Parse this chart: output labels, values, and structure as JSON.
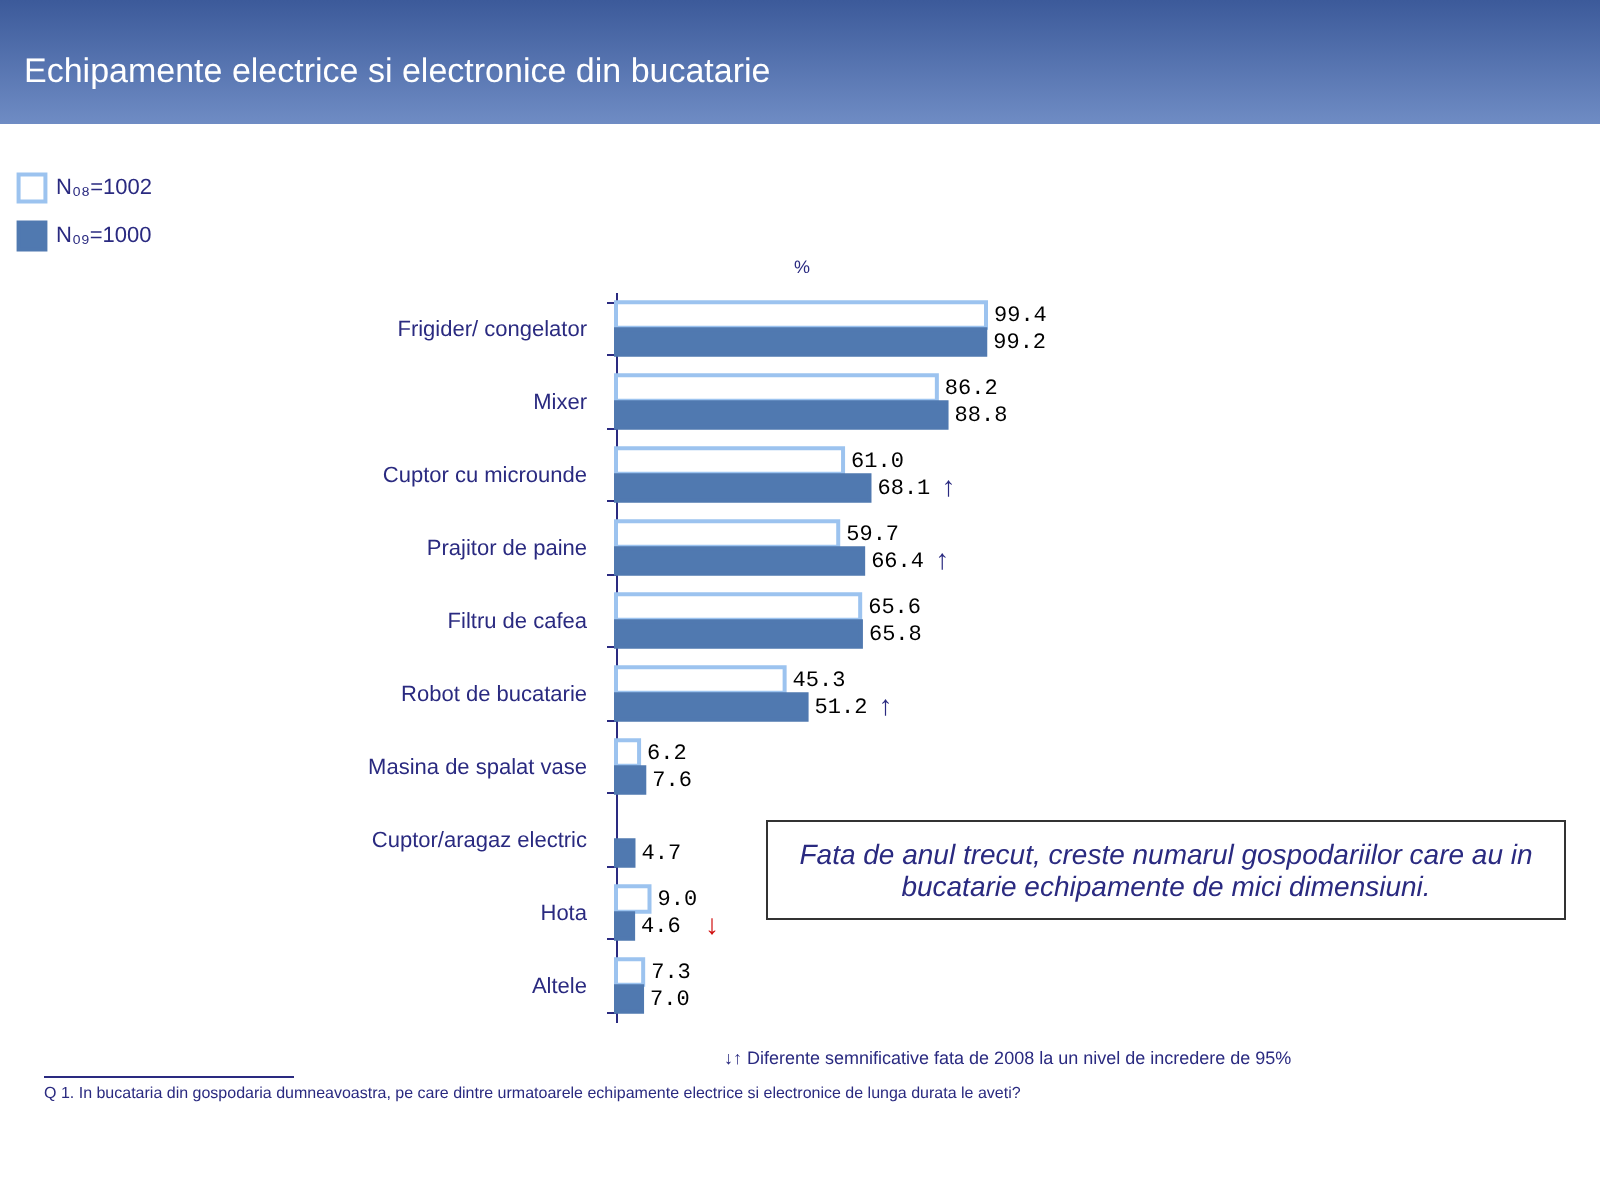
{
  "chart_data": {
    "type": "bar",
    "orientation": "horizontal",
    "title": "Echipamente electrice si electronice din bucatarie",
    "xlabel": "%",
    "categories": [
      "Frigider/ congelator",
      "Mixer",
      "Cuptor cu microunde",
      "Prajitor de paine",
      "Filtru de cafea",
      "Robot de bucatarie",
      "Masina de spalat vase",
      "Cuptor/aragaz electric",
      "Hota",
      "Altele"
    ],
    "series": [
      {
        "name": "N₀₈=1002",
        "color": "#9cc3ef",
        "values": [
          99.4,
          86.2,
          61.0,
          59.7,
          65.6,
          45.3,
          6.2,
          null,
          9.0,
          7.3
        ],
        "value_labels": [
          "99.4",
          "86.2",
          "61.0",
          "59.7",
          "65.6",
          "45.3",
          "6.2",
          null,
          "9.0",
          "7.3"
        ]
      },
      {
        "name": "N₀₉=1000",
        "color": "#5079b0",
        "values": [
          99.2,
          88.8,
          68.1,
          66.4,
          65.8,
          51.2,
          7.6,
          4.7,
          4.6,
          7.0
        ],
        "value_labels": [
          "99.2",
          "88.8",
          "68.1",
          "66.4",
          "65.8",
          "51.2",
          "7.6",
          "4.7",
          "4.6",
          "7.0"
        ]
      }
    ],
    "legend": "top left",
    "annotations": [
      {
        "text": "↑",
        "x": 68.1,
        "y": "Cuptor cu microunde"
      },
      {
        "text": "↑",
        "x": 66.4,
        "y": "Prajitor de paine"
      },
      {
        "text": "↑",
        "x": 51.2,
        "y": "Robot de bucatarie"
      },
      {
        "text": "↓",
        "x": 4.6,
        "y": "Hota"
      },
      "Fata de anul trecut, creste numarul gospodariilor care au in bucatarie echipamente de mici dimensiuni.",
      "↓↑ Diferente semnificative fata de 2008 la un nivel de incredere de 95%",
      "Q 1. In bucataria din gospodaria dumneavoastra, pe care dintre urmatoarele echipamente electrice si electronice de lunga durata le aveti?"
    ]
  }
}
